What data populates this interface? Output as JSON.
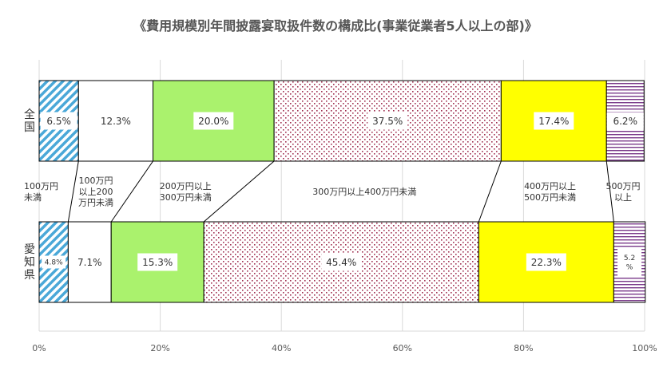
{
  "chart_data": {
    "type": "bar",
    "stacked": true,
    "orientation": "horizontal",
    "percent_stacked": true,
    "title": "《費用規模別年間披露宴取扱件数の構成比(事業従業者5人以上の部)》",
    "categories": [
      "全国",
      "愛知県"
    ],
    "series": [
      {
        "name": "100万円未満",
        "values": [
          6.5,
          4.8
        ],
        "color": "#4aa8d8",
        "pattern": "diagonal-stripes"
      },
      {
        "name": "100万円以上200万円未満",
        "values": [
          12.3,
          7.1
        ],
        "color": "#ffffff",
        "pattern": "none"
      },
      {
        "name": "200万円以上300万円未満",
        "values": [
          20.0,
          15.3
        ],
        "color": "#aaf26d",
        "pattern": "none"
      },
      {
        "name": "300万円以上400万円未満",
        "values": [
          37.5,
          45.4
        ],
        "color": "#a03050",
        "pattern": "dots"
      },
      {
        "name": "400万円以上500万円未満",
        "values": [
          17.4,
          22.3
        ],
        "color": "#ffff00",
        "pattern": "none"
      },
      {
        "name": "500万円以上",
        "values": [
          6.2,
          5.2
        ],
        "color": "#7a3a8a",
        "pattern": "horizontal-stripes"
      }
    ],
    "data_labels": [
      [
        "6.5%",
        "12.3%",
        "20.0%",
        "37.5%",
        "17.4%",
        "6.2%"
      ],
      [
        "4.8%",
        "7.1%",
        "15.3%",
        "45.4%",
        "22.3%",
        "5.2\n%"
      ]
    ],
    "middle_labels": [
      "100万円\n未満",
      "100万円\n以上200\n万円未満",
      "200万円以上\n300万円未満",
      "300万円以上400万円未満",
      "400万円以上\n500万円未満",
      "500万円\n以上"
    ],
    "xlim": [
      0,
      100
    ],
    "xticks": [
      "0%",
      "20%",
      "40%",
      "60%",
      "80%",
      "100%"
    ],
    "grid": true,
    "series_lines": true
  }
}
